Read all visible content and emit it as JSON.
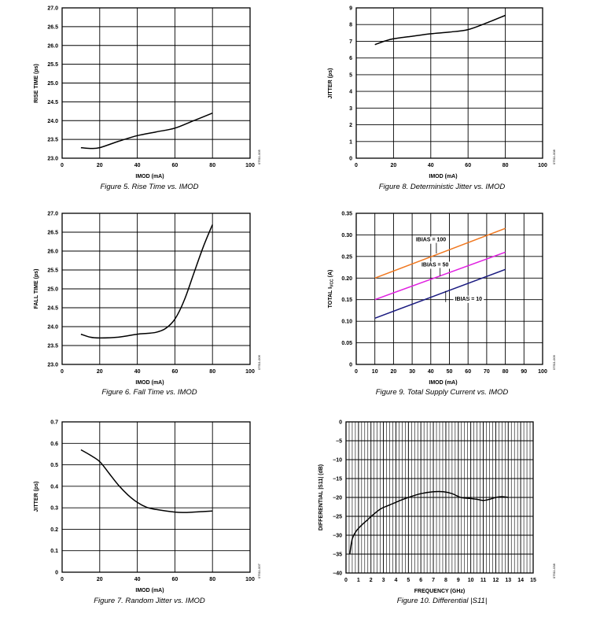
{
  "chart_data": [
    {
      "id": "fig5",
      "type": "line",
      "caption": "Figure 5. Rise Time vs. IMOD",
      "figure_number": "07511-005",
      "xlabel": "IMOD (mA)",
      "ylabel": "RISE TIME (ps)",
      "xlim": [
        0,
        100
      ],
      "ylim": [
        23.0,
        27.0
      ],
      "x_ticks": [
        0,
        20,
        40,
        60,
        80,
        100
      ],
      "x_tick_labels": [
        "0",
        "20",
        "40",
        "60",
        "80",
        "100"
      ],
      "y_ticks": [
        23.0,
        23.5,
        24.0,
        24.5,
        25.0,
        25.5,
        26.0,
        26.5,
        27.0
      ],
      "y_tick_labels": [
        "23.0",
        "23.5",
        "24.0",
        "24.5",
        "25.0",
        "25.5",
        "26.0",
        "26.5",
        "27.0"
      ],
      "grid": true,
      "series": [
        {
          "color": "#000000",
          "x": [
            10,
            15,
            20,
            30,
            40,
            50,
            60,
            70,
            80
          ],
          "y": [
            23.28,
            23.26,
            23.28,
            23.45,
            23.6,
            23.7,
            23.8,
            24.0,
            24.2
          ]
        }
      ]
    },
    {
      "id": "fig8",
      "type": "line",
      "caption": "Figure 8. Deterministic Jitter vs. IMOD",
      "figure_number": "07511-008",
      "xlabel": "IMOD (mA)",
      "ylabel": "JITTER (ps)",
      "xlim": [
        0,
        100
      ],
      "ylim": [
        0,
        9
      ],
      "x_ticks": [
        0,
        20,
        40,
        60,
        80,
        100
      ],
      "x_tick_labels": [
        "0",
        "20",
        "40",
        "60",
        "80",
        "100"
      ],
      "y_ticks": [
        0,
        1,
        2,
        3,
        4,
        5,
        6,
        7,
        8,
        9
      ],
      "y_tick_labels": [
        "0",
        "1",
        "2",
        "3",
        "4",
        "5",
        "6",
        "7",
        "8",
        "9"
      ],
      "grid": true,
      "series": [
        {
          "color": "#000000",
          "x": [
            10,
            15,
            20,
            30,
            40,
            50,
            60,
            70,
            80
          ],
          "y": [
            6.8,
            7.0,
            7.15,
            7.3,
            7.45,
            7.55,
            7.7,
            8.1,
            8.55
          ]
        }
      ]
    },
    {
      "id": "fig6",
      "type": "line",
      "caption": "Figure 6. Fall Time vs. IMOD",
      "figure_number": "07511-006",
      "xlabel": "IMOD (mA)",
      "ylabel": "FALL TIME (ps)",
      "xlim": [
        0,
        100
      ],
      "ylim": [
        23.0,
        27.0
      ],
      "x_ticks": [
        0,
        20,
        40,
        60,
        80,
        100
      ],
      "x_tick_labels": [
        "0",
        "20",
        "40",
        "60",
        "80",
        "100"
      ],
      "y_ticks": [
        23.0,
        23.5,
        24.0,
        24.5,
        25.0,
        25.5,
        26.0,
        26.5,
        27.0
      ],
      "y_tick_labels": [
        "23.0",
        "23.5",
        "24.0",
        "24.5",
        "25.0",
        "25.5",
        "26.0",
        "26.5",
        "27.0"
      ],
      "grid": true,
      "series": [
        {
          "color": "#000000",
          "x": [
            10,
            15,
            20,
            30,
            40,
            45,
            50,
            55,
            60,
            65,
            70,
            75,
            80
          ],
          "y": [
            23.8,
            23.72,
            23.7,
            23.72,
            23.8,
            23.82,
            23.85,
            23.95,
            24.2,
            24.7,
            25.4,
            26.1,
            26.7
          ]
        }
      ]
    },
    {
      "id": "fig9",
      "type": "line",
      "caption": "Figure 9. Total Supply Current vs. IMOD",
      "figure_number": "07511-009",
      "xlabel": "IMOD (mA)",
      "ylabel": "TOTAL IVCC (A)",
      "xlim": [
        0,
        100
      ],
      "ylim": [
        0,
        0.35
      ],
      "x_ticks": [
        0,
        10,
        20,
        30,
        40,
        50,
        60,
        70,
        80,
        90,
        100
      ],
      "x_tick_labels": [
        "0",
        "10",
        "20",
        "30",
        "40",
        "50",
        "60",
        "70",
        "80",
        "90",
        "100"
      ],
      "y_ticks": [
        0,
        0.05,
        0.1,
        0.15,
        0.2,
        0.25,
        0.3,
        0.35
      ],
      "y_tick_labels": [
        "0",
        "0.05",
        "0.10",
        "0.15",
        "0.20",
        "0.25",
        "0.30",
        "0.35"
      ],
      "grid": true,
      "annotations": [
        {
          "text": "IBIAS = 100",
          "x": 32,
          "y": 0.285,
          "lx": 43,
          "ly": 0.257
        },
        {
          "text": "IBIAS = 50",
          "x": 35,
          "y": 0.227,
          "lx": 45,
          "ly": 0.205
        },
        {
          "text": "IBIAS = 10",
          "x": 53,
          "y": 0.148,
          "lx": 48,
          "ly": 0.17
        }
      ],
      "series": [
        {
          "name": "IBIAS = 100",
          "color": "#f07820",
          "x": [
            10,
            80
          ],
          "y": [
            0.2,
            0.315
          ]
        },
        {
          "name": "IBIAS = 50",
          "color": "#e020e0",
          "x": [
            10,
            80
          ],
          "y": [
            0.15,
            0.26
          ]
        },
        {
          "name": "IBIAS = 10",
          "color": "#1a1a80",
          "x": [
            10,
            80
          ],
          "y": [
            0.107,
            0.22
          ]
        }
      ]
    },
    {
      "id": "fig7",
      "type": "line",
      "caption": "Figure 7. Random Jitter vs. IMOD",
      "figure_number": "07511-007",
      "xlabel": "IMOD (mA)",
      "ylabel": "JITTER (ps)",
      "xlim": [
        0,
        100
      ],
      "ylim": [
        0,
        0.7
      ],
      "x_ticks": [
        0,
        20,
        40,
        60,
        80,
        100
      ],
      "x_tick_labels": [
        "0",
        "20",
        "40",
        "60",
        "80",
        "100"
      ],
      "y_ticks": [
        0,
        0.1,
        0.2,
        0.3,
        0.4,
        0.5,
        0.6,
        0.7
      ],
      "y_tick_labels": [
        "0",
        "0.1",
        "0.2",
        "0.3",
        "0.4",
        "0.5",
        "0.6",
        "0.7"
      ],
      "grid": true,
      "series": [
        {
          "color": "#000000",
          "x": [
            10,
            15,
            20,
            25,
            30,
            35,
            40,
            45,
            50,
            60,
            65,
            70,
            80
          ],
          "y": [
            0.57,
            0.545,
            0.515,
            0.46,
            0.405,
            0.36,
            0.325,
            0.302,
            0.292,
            0.28,
            0.278,
            0.28,
            0.285
          ]
        }
      ]
    },
    {
      "id": "fig10",
      "type": "line",
      "caption": "Figure 10. Differential |S11|",
      "figure_number": "07511-038",
      "xlabel": "FREQUENCY (GHz)",
      "ylabel": "DIFFERENTIAL |S11| (dB)",
      "xlim": [
        0,
        15
      ],
      "ylim": [
        -40,
        0
      ],
      "x_ticks": [
        0,
        1,
        2,
        3,
        4,
        5,
        6,
        7,
        8,
        9,
        10,
        11,
        12,
        13,
        14,
        15
      ],
      "x_tick_labels": [
        "0",
        "1",
        "2",
        "3",
        "4",
        "5",
        "6",
        "7",
        "8",
        "9",
        "10",
        "11",
        "12",
        "13",
        "14",
        "15"
      ],
      "y_ticks": [
        -40,
        -35,
        -30,
        -25,
        -20,
        -15,
        -10,
        -5,
        0
      ],
      "y_tick_labels": [
        "−40",
        "−35",
        "−30",
        "−25",
        "−20",
        "−15",
        "−10",
        "−5",
        "0"
      ],
      "minor_x": 0.25,
      "grid": true,
      "series": [
        {
          "color": "#000000",
          "x": [
            0.3,
            0.5,
            0.8,
            1.2,
            1.7,
            2.2,
            2.8,
            3.5,
            4.2,
            5,
            6,
            7,
            7.8,
            8.5,
            9.2,
            10,
            10.5,
            11,
            11.5,
            12,
            12.5,
            13
          ],
          "y": [
            -35,
            -31,
            -29,
            -27.5,
            -26,
            -24.5,
            -23,
            -22,
            -21,
            -20,
            -19,
            -18.5,
            -18.5,
            -19,
            -20,
            -20.3,
            -20.5,
            -20.8,
            -20.5,
            -20,
            -19.8,
            -20
          ]
        }
      ]
    }
  ]
}
